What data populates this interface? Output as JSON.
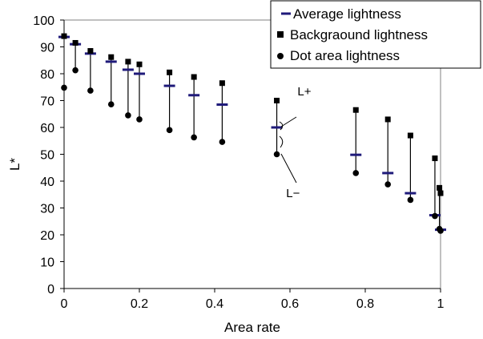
{
  "chart_data": {
    "type": "scatter",
    "xlabel": "Area rate",
    "ylabel": "L*",
    "xlim": [
      0,
      1.0
    ],
    "ylim": [
      0,
      100
    ],
    "x_ticks": [
      "0",
      "0.2",
      "0.4",
      "0.6",
      "0.8",
      "1"
    ],
    "y_ticks": [
      "0",
      "10",
      "20",
      "30",
      "40",
      "50",
      "60",
      "70",
      "80",
      "90",
      "100"
    ],
    "grid": false,
    "legend_position": "top-right",
    "series": [
      {
        "name": "Average lightness",
        "marker": "dash",
        "color": "#1f1a7a",
        "x": [
          0.0,
          0.03,
          0.07,
          0.125,
          0.17,
          0.2,
          0.28,
          0.345,
          0.42,
          0.565,
          0.775,
          0.86,
          0.92,
          0.985,
          1.0
        ],
        "y": [
          93.7,
          91,
          87.5,
          84.5,
          81.5,
          80,
          75.5,
          72,
          68.5,
          60,
          49.8,
          43,
          35.5,
          27.3,
          21.9
        ]
      },
      {
        "name": "Backgraound lightness",
        "marker": "square",
        "color": "#000000",
        "x": [
          0.0,
          0.03,
          0.07,
          0.125,
          0.17,
          0.2,
          0.28,
          0.345,
          0.42,
          0.565,
          0.775,
          0.86,
          0.92,
          0.985,
          0.997,
          1.0
        ],
        "y": [
          94,
          91.5,
          88.5,
          86.2,
          84.5,
          83.5,
          80.5,
          78.8,
          76.5,
          70,
          66.5,
          63,
          57,
          48.5,
          37.5,
          35.5
        ]
      },
      {
        "name": "Dot area lightness",
        "marker": "circle",
        "color": "#000000",
        "x": [
          0.0,
          0.03,
          0.07,
          0.125,
          0.17,
          0.2,
          0.28,
          0.345,
          0.42,
          0.565,
          0.775,
          0.86,
          0.92,
          0.985,
          0.997,
          1.0
        ],
        "y": [
          74.8,
          81.3,
          73.7,
          68.6,
          64.5,
          63,
          59,
          56.3,
          54.6,
          50,
          43,
          38.8,
          33,
          27,
          22.2,
          21.5
        ]
      }
    ],
    "segments": [
      {
        "x": 0.03,
        "y1": 81.3,
        "y2": 91.5
      },
      {
        "x": 0.07,
        "y1": 73.7,
        "y2": 88.5
      },
      {
        "x": 0.125,
        "y1": 68.6,
        "y2": 86.2
      },
      {
        "x": 0.17,
        "y1": 64.5,
        "y2": 84.5
      },
      {
        "x": 0.2,
        "y1": 63,
        "y2": 83.5
      },
      {
        "x": 0.28,
        "y1": 59,
        "y2": 80.5
      },
      {
        "x": 0.345,
        "y1": 56.3,
        "y2": 78.8
      },
      {
        "x": 0.42,
        "y1": 54.6,
        "y2": 76.5
      },
      {
        "x": 0.565,
        "y1": 50,
        "y2": 70
      },
      {
        "x": 0.775,
        "y1": 43,
        "y2": 66.5
      },
      {
        "x": 0.86,
        "y1": 38.8,
        "y2": 63
      },
      {
        "x": 0.92,
        "y1": 33,
        "y2": 57
      },
      {
        "x": 0.985,
        "y1": 27,
        "y2": 48.5
      },
      {
        "x": 0.997,
        "y1": 22.2,
        "y2": 37.5
      }
    ],
    "annotations": [
      {
        "text": "L+",
        "x": 0.62,
        "y": 72
      },
      {
        "text": "L−",
        "x": 0.59,
        "y": 34
      }
    ]
  }
}
